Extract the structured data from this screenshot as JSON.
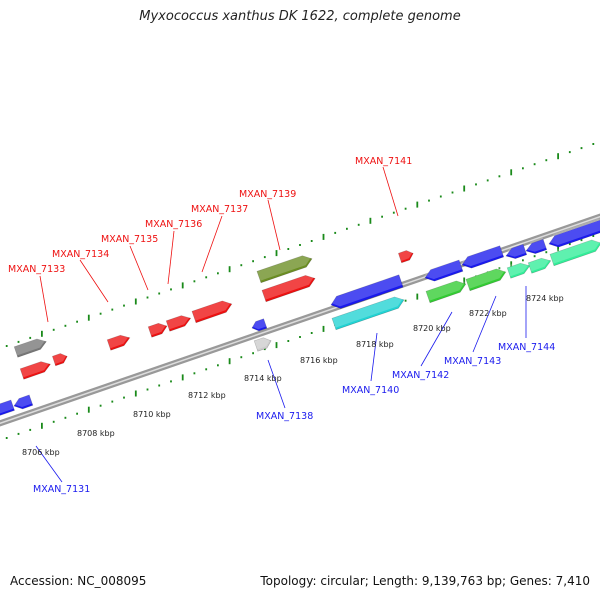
{
  "title": "Myxococcus xanthus DK 1622, complete genome",
  "footer": {
    "accession": "Accession: NC_008095",
    "summary": "Topology: circular; Length: 9,139,763 bp; Genes: 7,410"
  },
  "kbp_ticks": [
    "8706 kbp",
    "8708 kbp",
    "8710 kbp",
    "8712 kbp",
    "8714 kbp",
    "8716 kbp",
    "8718 kbp",
    "8720 kbp",
    "8722 kbp",
    "8724 kbp"
  ],
  "forward_labels": [
    "MXAN_7133",
    "MXAN_7134",
    "MXAN_7135",
    "MXAN_7136",
    "MXAN_7137",
    "MXAN_7139",
    "MXAN_7141"
  ],
  "reverse_labels": [
    "MXAN_7131",
    "MXAN_7138",
    "MXAN_7140",
    "MXAN_7142",
    "MXAN_7143",
    "MXAN_7144"
  ],
  "colors": {
    "forward": "#ee1111",
    "reverse": "#1a1aee",
    "backbone": "#888888",
    "ruler": "#1a8a1a",
    "olive": "#6b8e23",
    "cyan": "#22d3d3",
    "green": "#33cc33",
    "aqua": "#33ee99",
    "gray": "#777777",
    "silver": "#cccccc"
  }
}
